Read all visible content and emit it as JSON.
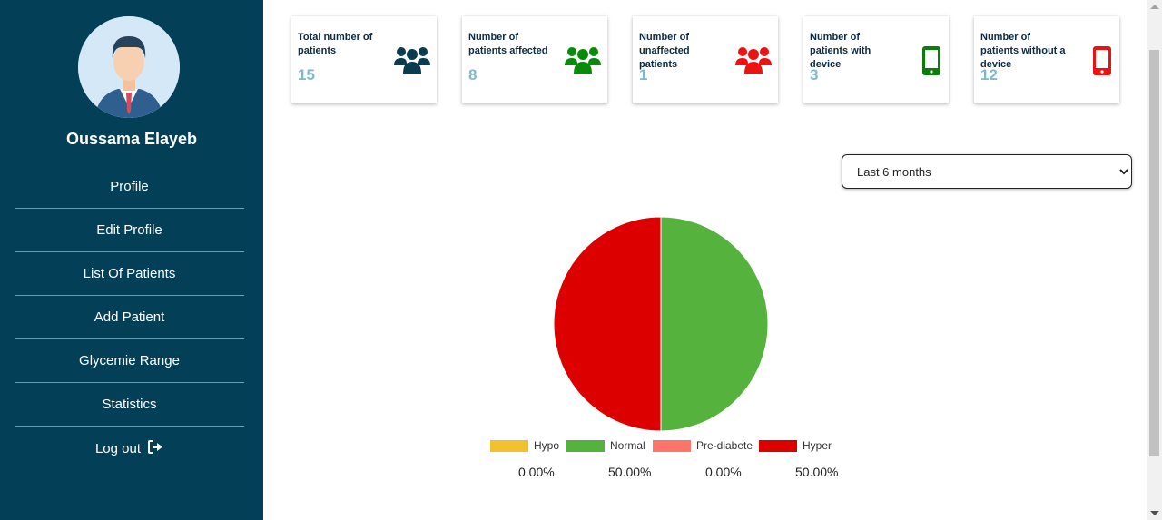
{
  "user": {
    "name": "Oussama Elayeb"
  },
  "nav": [
    {
      "label": "Profile"
    },
    {
      "label": "Edit Profile"
    },
    {
      "label": "List Of Patients"
    },
    {
      "label": "Add Patient"
    },
    {
      "label": "Glycemie Range"
    },
    {
      "label": "Statistics"
    }
  ],
  "logout": {
    "label": "Log out",
    "icon": "sign-out-icon"
  },
  "cards": [
    {
      "label": "Total number of patients",
      "value": "15",
      "icon": "users-icon",
      "color": "#0b3b4f"
    },
    {
      "label": "Number of patients affected",
      "value": "8",
      "icon": "users-icon",
      "color": "#0a8a0a"
    },
    {
      "label": "Number of unaffected patients",
      "value": "1",
      "icon": "users-icon",
      "color": "#ee1111"
    },
    {
      "label": "Number of patients with device",
      "value": "3",
      "icon": "mobile-icon",
      "color": "#0a7d0a"
    },
    {
      "label": "Number of patients without a device",
      "value": "12",
      "icon": "mobile-icon",
      "color": "#ee1111"
    }
  ],
  "period": {
    "selected": "Last 6 months"
  },
  "chart_data": {
    "type": "pie",
    "categories": [
      "Hypo",
      "Normal",
      "Pre-diabete",
      "Hyper"
    ],
    "values": [
      0,
      50,
      0,
      50
    ],
    "labels": [
      "0.00%",
      "50.00%",
      "0.00%",
      "50.00%"
    ],
    "colors": [
      "#f2c12e",
      "#55b23d",
      "#ff7468",
      "#dd0000"
    ],
    "legend": "bottom"
  }
}
